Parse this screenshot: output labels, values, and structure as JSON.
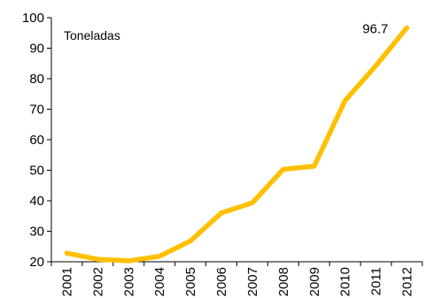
{
  "chart_data": {
    "type": "line",
    "title": "",
    "xlabel": "",
    "ylabel": "",
    "unit_label": "Toneladas",
    "categories": [
      "2001",
      "2002",
      "2003",
      "2004",
      "2005",
      "2006",
      "2007",
      "2008",
      "2009",
      "2010",
      "2011",
      "2012"
    ],
    "series": [
      {
        "values": [
          22.8,
          20.8,
          20.3,
          21.8,
          26.8,
          36.0,
          39.3,
          50.3,
          51.3,
          72.8,
          84.3,
          96.7
        ]
      }
    ],
    "ylim": [
      20,
      100
    ],
    "yticks": [
      "20",
      "30",
      "40",
      "50",
      "60",
      "70",
      "80",
      "90",
      "100"
    ],
    "data_labels": [
      {
        "category": "2012",
        "text": "96.7"
      }
    ],
    "line_color": "#FFC000",
    "grid": false,
    "legend": "none"
  }
}
